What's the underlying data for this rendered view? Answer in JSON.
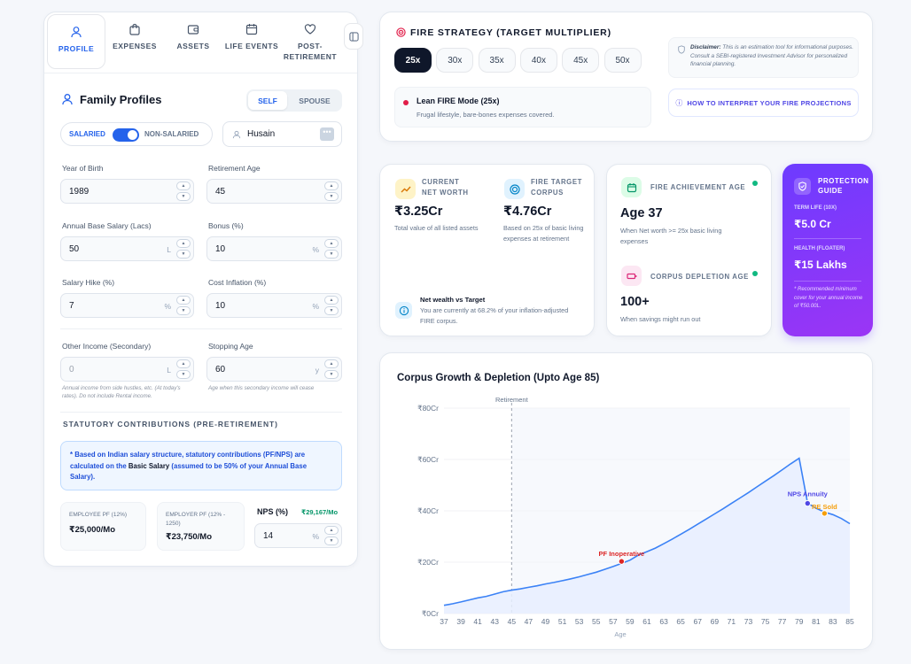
{
  "tabs": [
    {
      "label": "PROFILE",
      "icon": "user-icon",
      "active": true
    },
    {
      "label": "EXPENSES",
      "icon": "bag-icon",
      "active": false
    },
    {
      "label": "ASSETS",
      "icon": "wallet-icon",
      "active": false
    },
    {
      "label": "LIFE EVENTS",
      "icon": "calendar-icon",
      "active": false
    },
    {
      "label": "POST-\nRETIREMENT",
      "icon": "heart-icon",
      "active": false
    }
  ],
  "profiles": {
    "title": "Family Profiles",
    "self_label": "SELF",
    "spouse_label": "SPOUSE",
    "salaried_label": "SALARIED",
    "non_salaried_label": "NON-SALARIED",
    "name": "Husain"
  },
  "fields": {
    "year_of_birth": {
      "label": "Year of Birth",
      "value": "1989"
    },
    "retirement_age": {
      "label": "Retirement Age",
      "value": "45"
    },
    "annual_salary": {
      "label": "Annual Base Salary (Lacs)",
      "value": "50",
      "unit": "L"
    },
    "bonus": {
      "label": "Bonus (%)",
      "value": "10",
      "unit": "%"
    },
    "salary_hike": {
      "label": "Salary Hike (%)",
      "value": "7",
      "unit": "%"
    },
    "cost_inflation": {
      "label": "Cost Inflation (%)",
      "value": "10",
      "unit": "%"
    },
    "other_income": {
      "label": "Other Income (Secondary)",
      "placeholder": "0",
      "unit": "L",
      "hint": "Annual income from side hustles, etc. (At today's rates). Do not include Rental income."
    },
    "stopping_age": {
      "label": "Stopping Age",
      "value": "60",
      "unit": "y",
      "hint": "Age when this secondary income will cease"
    }
  },
  "statutory": {
    "title": "STATUTORY CONTRIBUTIONS (PRE-RETIREMENT)",
    "note_prefix": "* Based on Indian salary structure, statutory contributions (PF/NPS) are calculated on the ",
    "note_bold": "Basic Salary",
    "note_suffix": " (assumed to be 50% of your Annual Base Salary).",
    "employee_pf_label": "EMPLOYEE PF (12%)",
    "employee_pf_value": "₹25,000/Mo",
    "employer_pf_label": "EMPLOYER PF (12% - 1250)",
    "employer_pf_value": "₹23,750/Mo",
    "nps_label": "NPS (%)",
    "nps_amount": "₹29,167/Mo",
    "nps_value": "14",
    "nps_unit": "%"
  },
  "strategy": {
    "title": "FIRE STRATEGY (TARGET MULTIPLIER)",
    "multipliers": [
      "25x",
      "30x",
      "35x",
      "40x",
      "45x",
      "50x"
    ],
    "active": "25x",
    "mode_title": "Lean FIRE Mode (25x)",
    "mode_desc": "Frugal lifestyle, bare-bones expenses covered.",
    "disclaimer_bold": "Disclaimer:",
    "disclaimer_text": " This is an estimation tool for informational purposes. Consult a SEBI-registered Investment Advisor for personalized financial planning.",
    "interpret_button": "HOW TO INTERPRET YOUR FIRE PROJECTIONS"
  },
  "stats": {
    "net_worth_label": "CURRENT\nNET WORTH",
    "net_worth_value": "₹3.25Cr",
    "net_worth_desc": "Total value of all listed assets",
    "target_label": "FIRE TARGET\nCORPUS",
    "target_value": "₹4.76Cr",
    "target_desc": "Based on 25x of basic living expenses at retirement",
    "net_vs_target_title": "Net wealth vs Target",
    "net_vs_target_desc": "You are currently at 68.2% of your inflation-adjusted FIRE corpus.",
    "achievement_label": "FIRE ACHIEVEMENT AGE",
    "achievement_value": "Age 37",
    "achievement_desc": "When Net worth >= 25x basic living expenses",
    "depletion_label": "CORPUS DEPLETION AGE",
    "depletion_value": "100+",
    "depletion_desc": "When savings might run out",
    "status_color": "#10b981"
  },
  "protection": {
    "title": "PROTECTION\nGUIDE",
    "term_label": "TERM LIFE (10X)",
    "term_value": "₹5.0 Cr",
    "health_label": "HEALTH (FLOATER)",
    "health_value": "₹15 Lakhs",
    "note": "* Recommended minimum cover for your annual income of ₹50.00L.",
    "gradient_from": "#6d3bff",
    "gradient_to": "#9b35f5"
  },
  "chart_data": {
    "type": "area",
    "title": "Corpus Growth & Depletion (Upto Age 85)",
    "xlabel": "Age",
    "ylabel": "",
    "x": [
      37,
      38,
      39,
      40,
      41,
      42,
      43,
      44,
      45,
      46,
      47,
      48,
      49,
      50,
      51,
      52,
      53,
      54,
      55,
      56,
      57,
      58,
      59,
      60,
      61,
      62,
      63,
      64,
      65,
      66,
      67,
      68,
      69,
      70,
      71,
      72,
      73,
      74,
      75,
      76,
      77,
      78,
      79,
      80,
      81,
      82,
      83,
      84,
      85
    ],
    "series": [
      {
        "values": [
          3.2,
          3.8,
          4.5,
          5.3,
          6.1,
          6.7,
          7.6,
          8.5,
          9.1,
          9.6,
          10.2,
          10.8,
          11.5,
          12.1,
          12.8,
          13.5,
          14.3,
          15.2,
          16.1,
          17.2,
          18.3,
          19.5,
          20.8,
          22.8,
          24.1,
          25.5,
          27.2,
          29.0,
          30.9,
          32.8,
          34.8,
          36.8,
          38.8,
          40.8,
          42.9,
          45.0,
          47.1,
          49.3,
          51.5,
          53.7,
          56.0,
          58.3,
          60.5,
          43.0,
          41.0,
          39.5,
          38.5,
          37.0,
          35.0
        ]
      }
    ],
    "x_ticks": [
      37,
      39,
      41,
      43,
      45,
      47,
      49,
      51,
      53,
      55,
      57,
      59,
      61,
      63,
      65,
      67,
      69,
      71,
      73,
      75,
      77,
      79,
      81,
      83,
      85
    ],
    "y_ticks": [
      "₹0Cr",
      "₹20Cr",
      "₹40Cr",
      "₹60Cr",
      "₹80Cr"
    ],
    "ylim": [
      0,
      80
    ],
    "xlim": [
      37,
      85
    ],
    "retirement_age": 45,
    "retirement_label": "Retirement",
    "annotations": [
      {
        "label": "PF Inoperative",
        "x": 58,
        "y": 20.3,
        "color": "#dc2626"
      },
      {
        "label": "NPS Annuity",
        "x": 80,
        "y": 42.9,
        "color": "#4f46e5"
      },
      {
        "label": "RE Sold",
        "x": 82,
        "y": 39.0,
        "color": "#f59e0b"
      }
    ],
    "line_color": "#3b82f6",
    "fill_color": "#e8efff"
  }
}
